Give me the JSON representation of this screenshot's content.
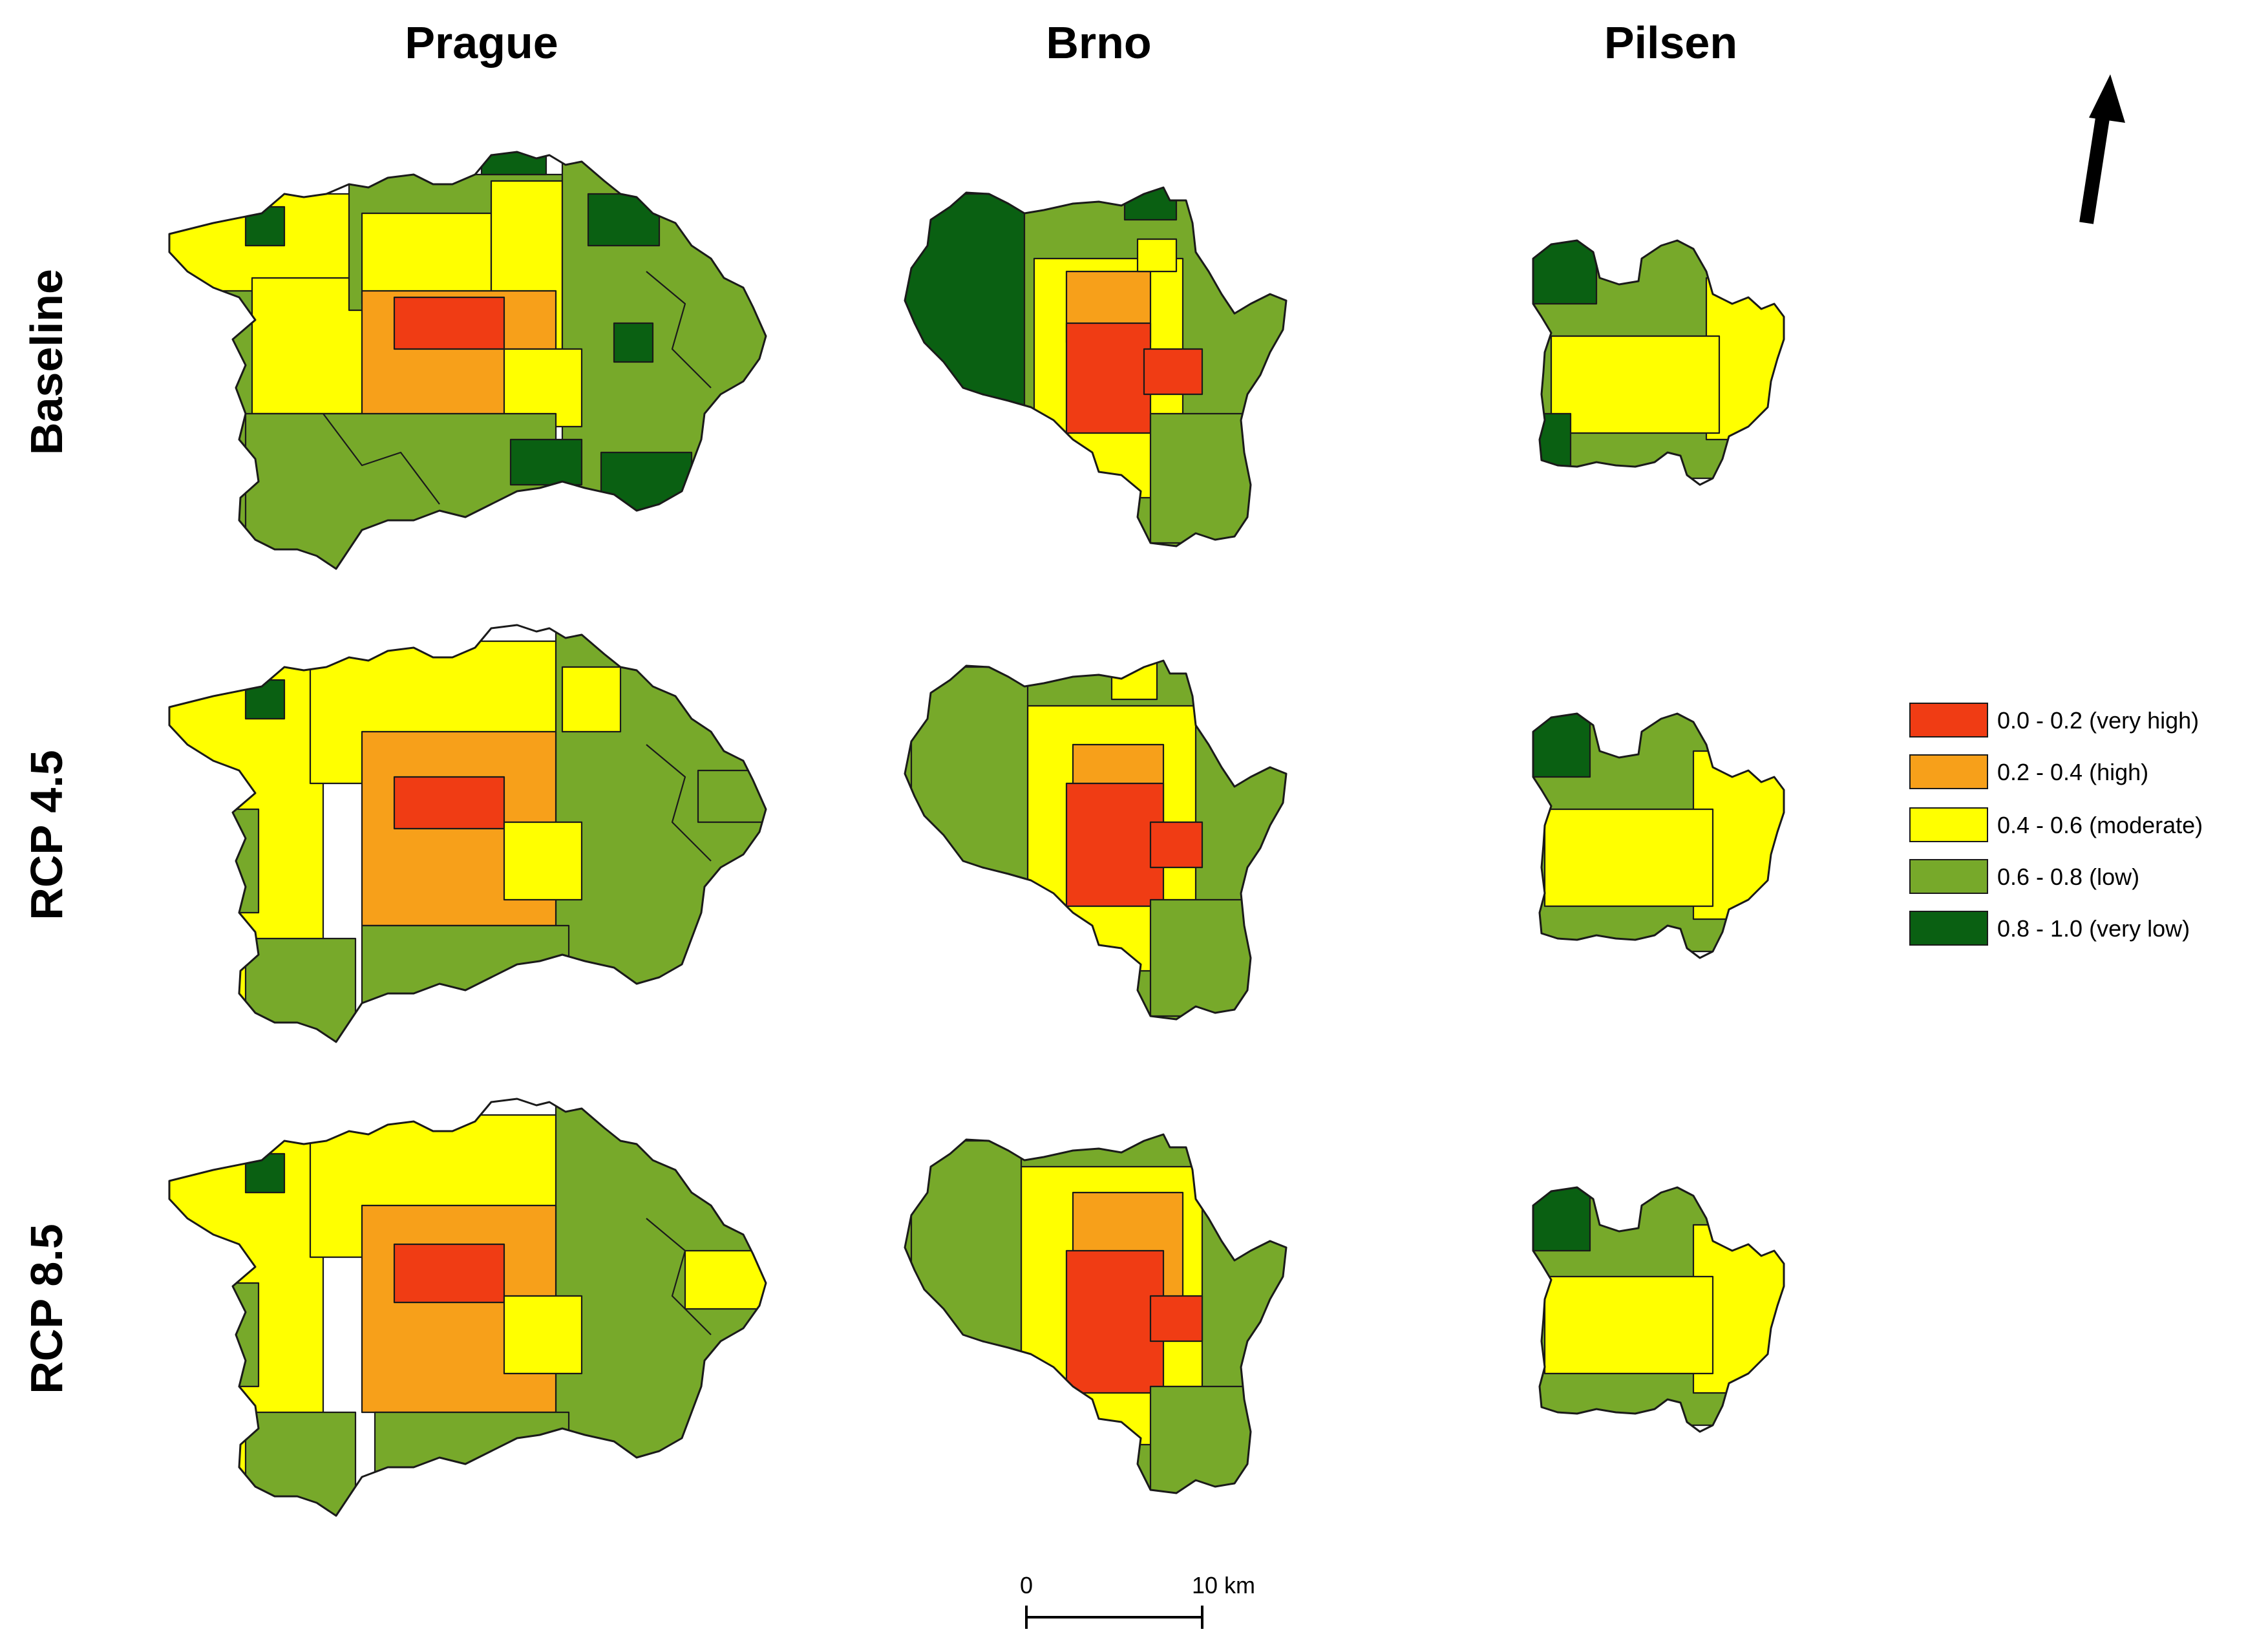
{
  "columns": [
    "Prague",
    "Brno",
    "Pilsen"
  ],
  "rows": [
    "Baseline",
    "RCP 4.5",
    "RCP 8.5"
  ],
  "legend": [
    {
      "label": "0.0 - 0.2 (very high)",
      "color": "#f03c14"
    },
    {
      "label": "0.2 - 0.4 (high)",
      "color": "#f7a01a"
    },
    {
      "label": "0.4 - 0.6 (moderate)",
      "color": "#ffff00"
    },
    {
      "label": "0.6 - 0.8 (low)",
      "color": "#77a92a"
    },
    {
      "label": "0.8 - 1.0 (very low)",
      "color": "#0a6012"
    }
  ],
  "scale_bar": {
    "start": "0",
    "end": "10 km"
  },
  "north_arrow": "arrow-icon"
}
